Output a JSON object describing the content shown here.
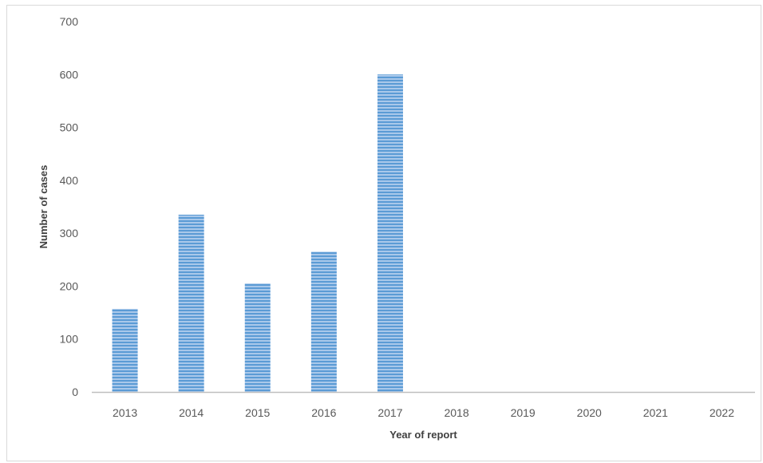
{
  "chart_data": {
    "type": "bar",
    "title": "",
    "xlabel": "Year of report",
    "ylabel": "Number of cases",
    "categories": [
      "2013",
      "2014",
      "2015",
      "2016",
      "2017",
      "2018",
      "2019",
      "2020",
      "2021",
      "2022"
    ],
    "values": [
      157,
      335,
      205,
      265,
      600,
      0,
      0,
      0,
      0,
      0
    ],
    "ylim": [
      0,
      700
    ],
    "yticks": [
      0,
      100,
      200,
      300,
      400,
      500,
      600,
      700
    ],
    "grid": false,
    "legend": "none",
    "bar_color": "#5b9bd5",
    "bar_pattern": "horizontal-stripes"
  }
}
